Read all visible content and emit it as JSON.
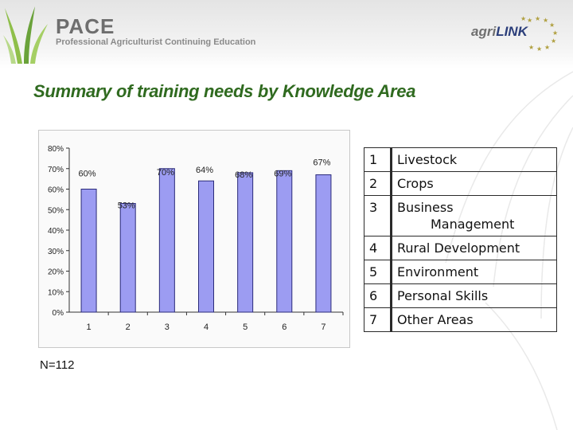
{
  "header": {
    "brand_title": "PACE",
    "brand_subtitle": "Professional Agriculturist Continuing Education",
    "partner_prefix": "agri",
    "partner_suffix": "LINK"
  },
  "slide_title": "Summary of training needs by Knowledge Area",
  "sample_note": "N=112",
  "legend": {
    "rows": [
      {
        "num": "1",
        "lines": [
          "Livestock"
        ]
      },
      {
        "num": "2",
        "lines": [
          "Crops"
        ]
      },
      {
        "num": "3",
        "lines": [
          "Business",
          "Management"
        ]
      },
      {
        "num": "4",
        "lines": [
          "Rural Development"
        ]
      },
      {
        "num": "5",
        "lines": [
          "Environment"
        ]
      },
      {
        "num": "6",
        "lines": [
          "Personal Skills"
        ]
      },
      {
        "num": "7",
        "lines": [
          "Other Areas"
        ]
      }
    ]
  },
  "colors": {
    "bar_fill": "#9c9cf2",
    "bar_stroke": "#2b2b7a",
    "title_green": "#2f6a1f"
  },
  "chart_data": {
    "type": "bar",
    "categories": [
      "1",
      "2",
      "3",
      "4",
      "5",
      "6",
      "7"
    ],
    "values": [
      60,
      53,
      70,
      64,
      68,
      69,
      67
    ],
    "data_labels": [
      "60%",
      "53%",
      "70%",
      "64%",
      "68%",
      "69%",
      "67%"
    ],
    "y_ticks": [
      "0%",
      "10%",
      "20%",
      "30%",
      "40%",
      "50%",
      "60%",
      "70%",
      "80%"
    ],
    "ylim": [
      0,
      80
    ],
    "grid": false,
    "legend": "none",
    "title": "",
    "xlabel": "",
    "ylabel": ""
  }
}
